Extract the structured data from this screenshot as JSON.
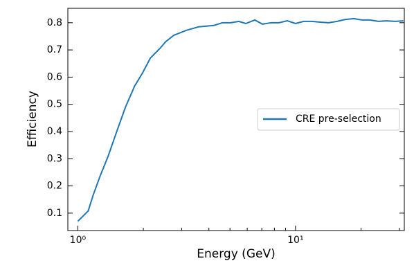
{
  "chart_data": {
    "type": "line",
    "xlabel": "Energy (GeV)",
    "ylabel": "Efficiency",
    "xscale": "log",
    "xlim": [
      0.9,
      31.6
    ],
    "ylim": [
      0.036,
      0.853
    ],
    "xticks": [
      {
        "value": 1,
        "label": "10⁰"
      },
      {
        "value": 10,
        "label": "10¹"
      }
    ],
    "xminorticks": [
      2,
      3,
      4,
      5,
      6,
      7,
      8,
      9,
      20,
      30
    ],
    "yticks": [
      0.1,
      0.2,
      0.3,
      0.4,
      0.5,
      0.6,
      0.7,
      0.8
    ],
    "legend": "right",
    "series": [
      {
        "name": "CRE pre-selection",
        "color": "#1f77b4",
        "x": [
          1.0,
          1.116,
          1.174,
          1.264,
          1.379,
          1.517,
          1.656,
          1.821,
          1.988,
          2.154,
          2.387,
          2.53,
          2.762,
          3.15,
          3.59,
          4.22,
          4.61,
          5.03,
          5.49,
          5.91,
          6.5,
          7.04,
          7.74,
          8.39,
          9.17,
          10,
          10.9,
          11.9,
          13.0,
          14.2,
          15.5,
          16.9,
          18.5,
          20.2,
          22.0,
          24.0,
          26.2,
          28.6,
          31.3
        ],
        "values": [
          0.07,
          0.108,
          0.164,
          0.235,
          0.31,
          0.405,
          0.49,
          0.566,
          0.617,
          0.67,
          0.706,
          0.73,
          0.754,
          0.772,
          0.785,
          0.79,
          0.8,
          0.8,
          0.805,
          0.797,
          0.81,
          0.795,
          0.8,
          0.8,
          0.807,
          0.797,
          0.805,
          0.805,
          0.802,
          0.8,
          0.805,
          0.812,
          0.815,
          0.81,
          0.81,
          0.805,
          0.807,
          0.805,
          0.807
        ]
      }
    ]
  }
}
